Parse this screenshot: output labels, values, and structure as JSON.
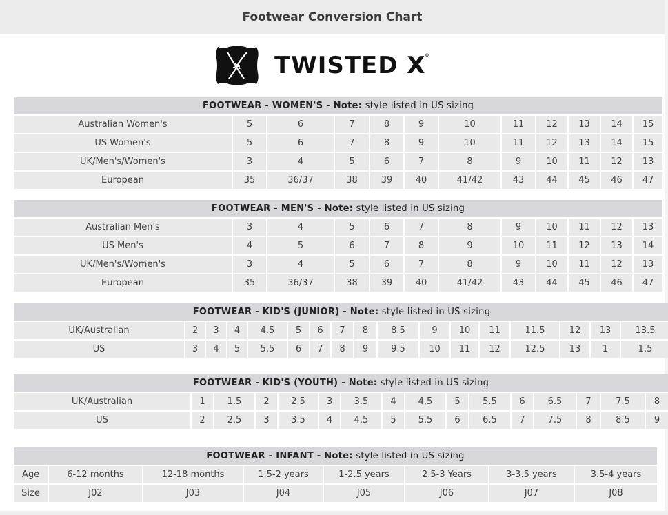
{
  "page_title": "Footwear Conversion Chart",
  "logo": {
    "text": "TWISTED X",
    "mark": "®",
    "icon": "twisted-x-badge-icon"
  },
  "colors": {
    "header_bg": "#d7d7db",
    "cell_bg": "#e9e9e9",
    "title_bar_bg": "#ebebeb"
  },
  "tables": [
    {
      "id": "womens",
      "title_bold": "FOOTWEAR - WOMEN'S - Note:",
      "title_rest": " style listed in US sizing",
      "rows": [
        [
          "Australian Women's",
          "5",
          "6",
          "7",
          "8",
          "9",
          "10",
          "11",
          "12",
          "13",
          "14",
          "15"
        ],
        [
          "US Women's",
          "5",
          "6",
          "7",
          "8",
          "9",
          "10",
          "11",
          "12",
          "13",
          "14",
          "15"
        ],
        [
          "UK/Men's/Women's",
          "3",
          "4",
          "5",
          "6",
          "7",
          "8",
          "9",
          "10",
          "11",
          "12",
          "13"
        ],
        [
          "European",
          "35",
          "36/37",
          "38",
          "39",
          "40",
          "41/42",
          "43",
          "44",
          "45",
          "46",
          "47"
        ]
      ]
    },
    {
      "id": "mens",
      "title_bold": "FOOTWEAR - MEN'S - Note:",
      "title_rest": " style listed in US sizing",
      "rows": [
        [
          "Australian Men's",
          "3",
          "4",
          "5",
          "6",
          "7",
          "8",
          "9",
          "10",
          "11",
          "12",
          "13"
        ],
        [
          "US Men's",
          "4",
          "5",
          "6",
          "7",
          "8",
          "9",
          "10",
          "11",
          "12",
          "13",
          "14"
        ],
        [
          "UK/Men's/Women's",
          "3",
          "4",
          "5",
          "6",
          "7",
          "8",
          "9",
          "10",
          "11",
          "12",
          "13"
        ],
        [
          "European",
          "35",
          "36/37",
          "38",
          "39",
          "40",
          "41/42",
          "43",
          "44",
          "45",
          "46",
          "47"
        ]
      ]
    },
    {
      "id": "kids-junior",
      "title_bold": "FOOTWEAR - KID'S (JUNIOR) - Note:",
      "title_rest": " style listed in US sizing",
      "rows": [
        [
          "UK/Australian",
          "2",
          "3",
          "4",
          "4.5",
          "5",
          "6",
          "7",
          "8",
          "8.5",
          "9",
          "10",
          "11",
          "11.5",
          "12",
          "13",
          "13.5"
        ],
        [
          "US",
          "3",
          "4",
          "5",
          "5.5",
          "6",
          "7",
          "8",
          "9",
          "9.5",
          "10",
          "11",
          "12",
          "12.5",
          "13",
          "1",
          "1.5"
        ]
      ]
    },
    {
      "id": "kids-youth",
      "title_bold": "FOOTWEAR - KID'S (YOUTH) - Note:",
      "title_rest": " style listed in US sizing",
      "rows": [
        [
          "UK/Australian",
          "1",
          "1.5",
          "2",
          "2.5",
          "3",
          "3.5",
          "4",
          "4.5",
          "5",
          "5.5",
          "6",
          "6.5",
          "7",
          "7.5",
          "8"
        ],
        [
          "US",
          "2",
          "2.5",
          "3",
          "3.5",
          "4",
          "4.5",
          "5",
          "5.5",
          "6",
          "6.5",
          "7",
          "7.5",
          "8",
          "8.5",
          "9"
        ]
      ]
    },
    {
      "id": "infant",
      "title_bold": "FOOTWEAR - INFANT - Note:",
      "title_rest": " style listed in US sizing",
      "rows": [
        [
          "Age",
          "6-12 months",
          "12-18 months",
          "1.5-2 years",
          "1-2.5 years",
          "2.5-3 Years",
          "3-3.5 years",
          "3.5-4 years"
        ],
        [
          "Size",
          "J02",
          "J03",
          "J04",
          "J05",
          "J06",
          "J07",
          "J08"
        ]
      ]
    }
  ]
}
